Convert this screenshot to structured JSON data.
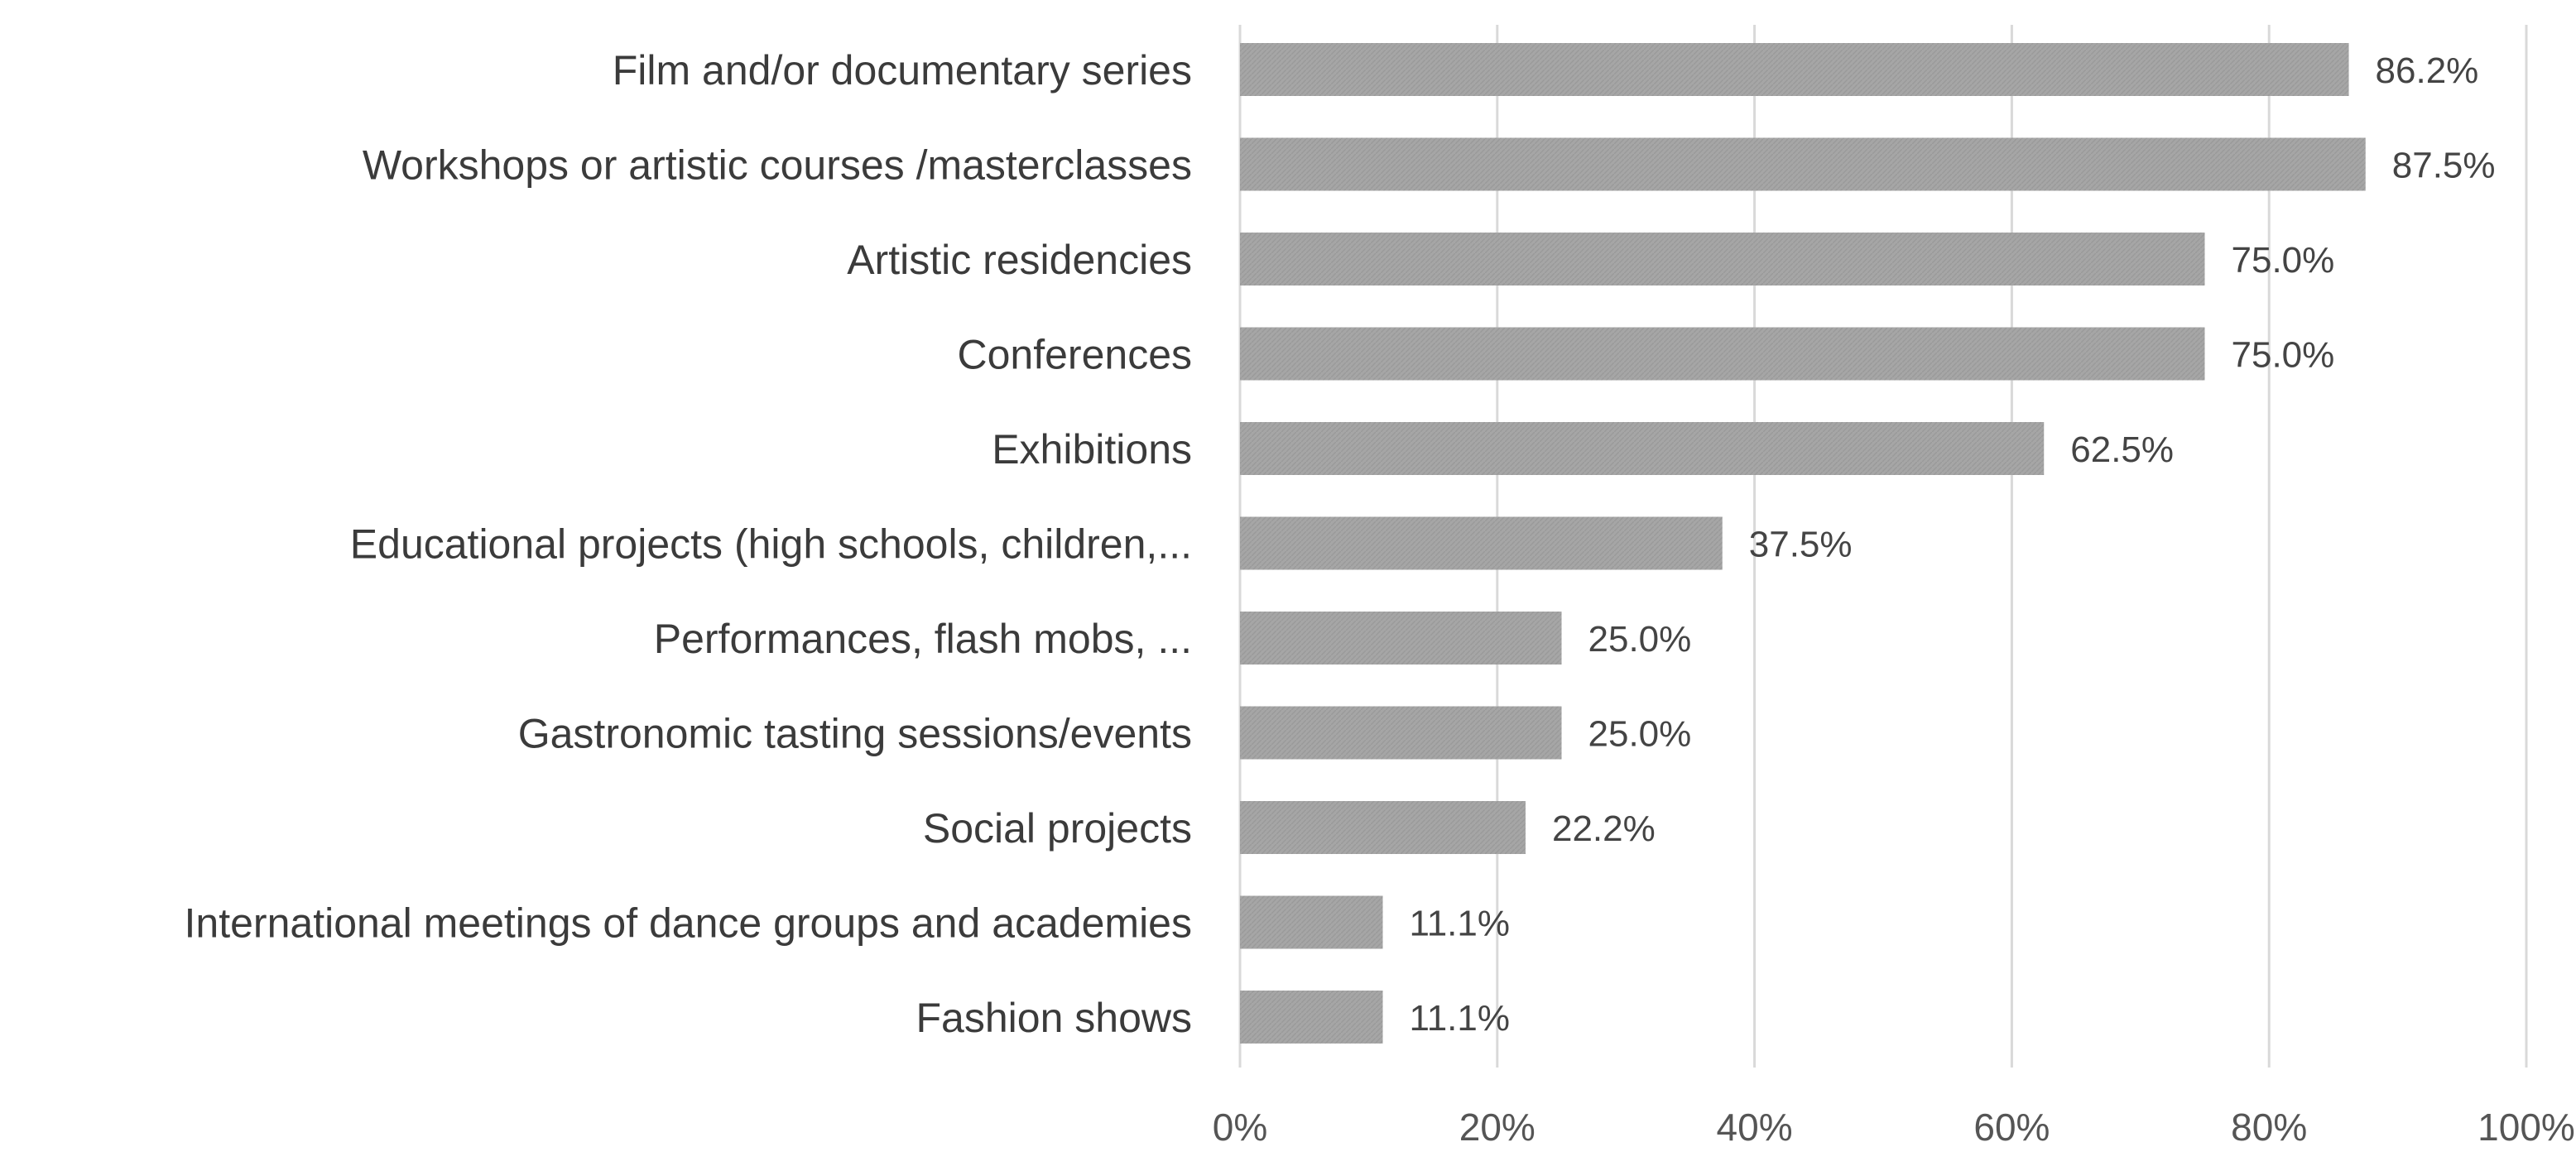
{
  "chart_data": {
    "type": "bar",
    "orientation": "horizontal",
    "categories": [
      "Film and/or documentary series",
      "Workshops or artistic courses /masterclasses",
      "Artistic residencies",
      "Conferences",
      "Exhibitions",
      "Educational projects (high schools, children,...",
      "Performances, flash mobs, ...",
      "Gastronomic tasting sessions/events",
      "Social projects",
      "International meetings of dance groups and academies",
      "Fashion shows"
    ],
    "values": [
      86.2,
      87.5,
      75.0,
      75.0,
      62.5,
      37.5,
      25.0,
      25.0,
      22.2,
      11.1,
      11.1
    ],
    "value_labels": [
      "86.2%",
      "87.5%",
      "75.0%",
      "75.0%",
      "62.5%",
      "37.5%",
      "25.0%",
      "25.0%",
      "22.2%",
      "11.1%",
      "11.1%"
    ],
    "x_ticks": [
      "0%",
      "20%",
      "40%",
      "60%",
      "80%",
      "100%"
    ],
    "xlim": [
      0,
      100
    ],
    "grid": "vertical",
    "legend": "none",
    "bar_color": "#a6a6a6",
    "grid_color": "#d9d9d9",
    "title": "",
    "xlabel": "",
    "ylabel": ""
  }
}
